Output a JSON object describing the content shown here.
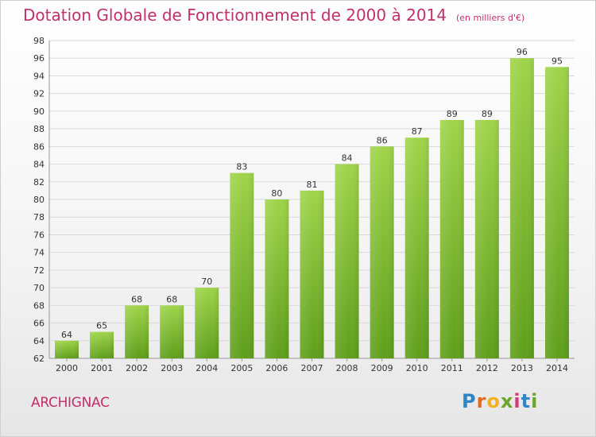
{
  "chart_data": {
    "type": "bar",
    "title": "Dotation Globale de Fonctionnement de 2000 à 2014",
    "unit": "(en milliers d'€)",
    "categories": [
      "2000",
      "2001",
      "2002",
      "2003",
      "2004",
      "2005",
      "2006",
      "2007",
      "2008",
      "2009",
      "2010",
      "2011",
      "2012",
      "2013",
      "2014"
    ],
    "values": [
      64,
      65,
      68,
      68,
      70,
      83,
      80,
      81,
      84,
      86,
      87,
      89,
      89,
      96,
      95
    ],
    "ylim": [
      62,
      98
    ],
    "ytick_step": 2,
    "grid": true,
    "bar_color_top": "#9fd44a",
    "bar_color_bottom": "#5e9e1a"
  },
  "footer": {
    "commune": "ARCHIGNAC",
    "brand_letters": [
      "P",
      "r",
      "o",
      "x",
      "i",
      "t",
      "i"
    ]
  }
}
